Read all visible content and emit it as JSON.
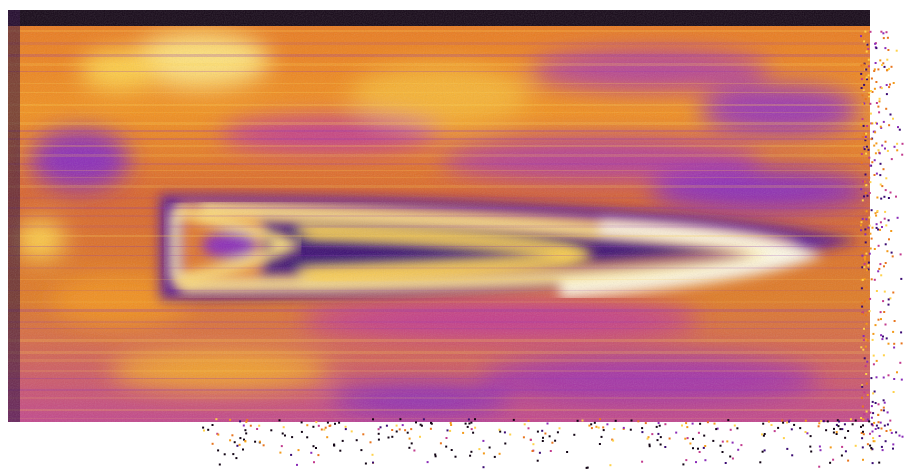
{
  "image": {
    "kind": "false-color thermal / interference map",
    "palette": {
      "background": "#ffffff",
      "edge": "#120414",
      "deep_purple": "#3a0a72",
      "purple": "#8a2bb8",
      "magenta": "#c23a8e",
      "orange": "#e8751e",
      "bright_orange": "#f39a1a",
      "yellow": "#ffd24a",
      "white_hot": "#fffbe6"
    },
    "features": [
      "dark-top-band",
      "chevron-fringe-outer",
      "chevron-fringe-middle",
      "chevron-fringe-inner",
      "horizontal-striations",
      "speckled-right-edge",
      "speckled-bottom-edge"
    ]
  }
}
